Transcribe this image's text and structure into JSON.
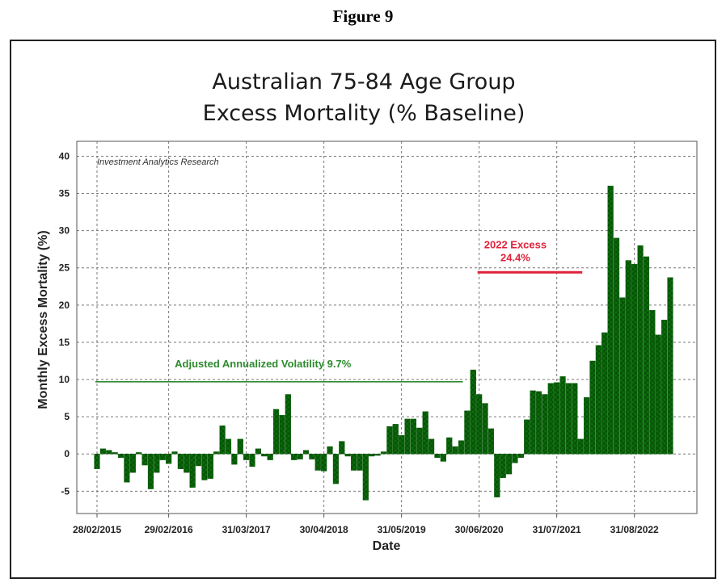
{
  "figure_label": "Figure 9",
  "chart_data": {
    "type": "bar",
    "title_line1": "Australian 75-84 Age Group",
    "title_line2": "Excess Mortality (% Baseline)",
    "xlabel": "Date",
    "ylabel": "Monthly Excess Mortality (%)",
    "watermark": "Investment Analytics Research",
    "ylim": [
      -8,
      42
    ],
    "yticks": [
      -5,
      0,
      5,
      10,
      15,
      20,
      25,
      30,
      35,
      40
    ],
    "ytick_labels": [
      "-5",
      "0",
      "5",
      "10",
      "15",
      "20",
      "25",
      "30",
      "35",
      "40"
    ],
    "xticks": [
      {
        "label": "28/02/2015",
        "index": 0
      },
      {
        "label": "29/02/2016",
        "index": 12
      },
      {
        "label": "31/03/2017",
        "index": 25
      },
      {
        "label": "30/04/2018",
        "index": 38
      },
      {
        "label": "31/05/2019",
        "index": 51
      },
      {
        "label": "30/06/2020",
        "index": 64
      },
      {
        "label": "31/07/2021",
        "index": 77
      },
      {
        "label": "31/08/2022",
        "index": 90
      }
    ],
    "grid": true,
    "bar_color": "#0a6b0a",
    "values": [
      -2.0,
      0.7,
      0.5,
      0.2,
      -0.5,
      -3.8,
      -2.5,
      0.2,
      -1.5,
      -4.7,
      -2.5,
      -0.8,
      -1.3,
      0.3,
      -2.0,
      -2.5,
      -4.5,
      -1.6,
      -3.5,
      -3.3,
      0.3,
      3.8,
      2.0,
      -1.4,
      2.0,
      -0.8,
      -1.7,
      0.7,
      -0.3,
      -0.8,
      6.0,
      5.2,
      8.0,
      -0.8,
      -0.7,
      0.5,
      -0.7,
      -2.2,
      -2.3,
      1.0,
      -4.0,
      1.7,
      -0.3,
      -2.2,
      -2.2,
      -6.2,
      -0.3,
      -0.2,
      0.3,
      3.7,
      4.0,
      2.5,
      4.7,
      4.7,
      3.5,
      5.7,
      2.0,
      -0.5,
      -1.0,
      2.2,
      1.0,
      1.8,
      5.8,
      11.3,
      8.0,
      6.8,
      3.4,
      -5.8,
      -3.2,
      -2.7,
      -1.2,
      -0.5,
      4.6,
      8.5,
      8.4,
      8.0,
      9.5,
      9.6,
      10.4,
      9.5,
      9.5,
      2.0,
      7.6,
      12.5,
      14.6,
      16.3,
      36.0,
      29.0,
      21.0,
      26.0,
      25.5,
      28.0,
      26.5,
      19.3,
      16.0,
      18.0,
      23.7
    ],
    "annotations": [
      {
        "text": "Adjusted Annualized Volatility 9.7%",
        "color": "#2e8b2e",
        "y": 9.7,
        "x_start": 0,
        "x_end": 61
      },
      {
        "text_line1": "2022 Excess",
        "text_line2": "24.4%",
        "color": "#e0213a",
        "y": 24.4,
        "x_start": 64,
        "x_end": 81
      }
    ]
  }
}
